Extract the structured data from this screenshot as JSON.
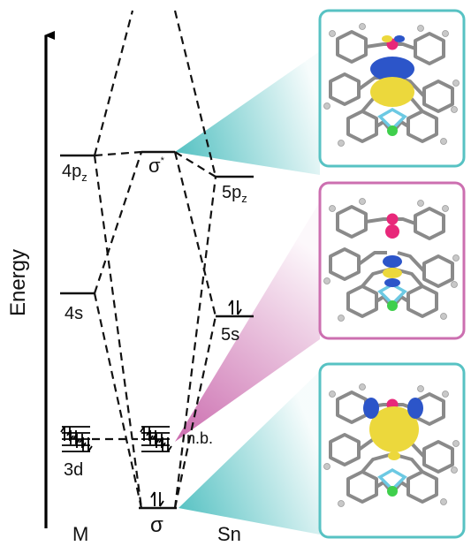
{
  "axis": {
    "label": "Energy"
  },
  "columns": {
    "metal": "M",
    "sigma_bond": "σ",
    "tin": "Sn"
  },
  "levels": {
    "m_4pz": {
      "base": "4p",
      "sub": "z"
    },
    "m_4s": {
      "text": "4s"
    },
    "m_3d": {
      "text": "3d"
    },
    "sigma_star": {
      "base": "σ",
      "sup": "*"
    },
    "sn_5pz": {
      "base": "5p",
      "sub": "z"
    },
    "sn_5s": {
      "text": "5s"
    },
    "nonbonding": {
      "text": "n.b."
    }
  },
  "orbital_panels": [
    {
      "id": "sigma-star",
      "border_color": "#57c2c3"
    },
    {
      "id": "nonbonding",
      "border_color": "#cc6fb0"
    },
    {
      "id": "sigma",
      "border_color": "#57c2c3"
    }
  ],
  "colors": {
    "teal": "#57c2c3",
    "magenta": "#cc6fb0",
    "lobe_blue": "#2c55c9",
    "lobe_yellow": "#ecd83c",
    "atom_pink": "#e8287a",
    "atom_green": "#3fcf4c",
    "atom_cyan": "#6cc9e3",
    "carbon_gray": "#8a8a8a"
  }
}
